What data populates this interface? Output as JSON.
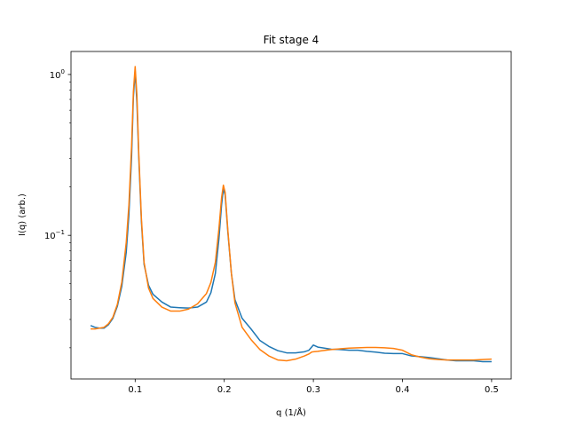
{
  "chart_data": {
    "type": "line",
    "title": "Fit stage 4",
    "xlabel": "q (1/Å)",
    "ylabel": "I(q) (arb.)",
    "xlim": [
      0.028,
      0.522
    ],
    "ylim": [
      0.0128,
      1.39
    ],
    "yscale": "log",
    "grid": false,
    "x_ticks": [
      {
        "value": 0.1,
        "label": "0.1"
      },
      {
        "value": 0.2,
        "label": "0.2"
      },
      {
        "value": 0.3,
        "label": "0.3"
      },
      {
        "value": 0.4,
        "label": "0.4"
      },
      {
        "value": 0.5,
        "label": "0.5"
      }
    ],
    "y_ticks": [
      {
        "value": 1,
        "base": "10",
        "exp": "0"
      },
      {
        "value": 0.1,
        "base": "10",
        "exp": "−1"
      }
    ],
    "series": [
      {
        "color": "#1f77b4",
        "x": [
          0.05,
          0.055,
          0.06,
          0.065,
          0.07,
          0.075,
          0.08,
          0.085,
          0.09,
          0.093,
          0.096,
          0.098,
          0.1,
          0.102,
          0.104,
          0.107,
          0.11,
          0.115,
          0.12,
          0.13,
          0.14,
          0.15,
          0.16,
          0.17,
          0.18,
          0.185,
          0.19,
          0.194,
          0.197,
          0.199,
          0.201,
          0.204,
          0.208,
          0.212,
          0.22,
          0.23,
          0.24,
          0.25,
          0.26,
          0.27,
          0.28,
          0.29,
          0.295,
          0.298,
          0.3,
          0.305,
          0.31,
          0.32,
          0.33,
          0.34,
          0.35,
          0.36,
          0.37,
          0.38,
          0.39,
          0.4,
          0.41,
          0.42,
          0.43,
          0.44,
          0.45,
          0.46,
          0.47,
          0.48,
          0.49,
          0.5
        ],
        "y": [
          0.0275,
          0.0268,
          0.0265,
          0.0265,
          0.0278,
          0.0305,
          0.0362,
          0.0482,
          0.0785,
          0.135,
          0.31,
          0.72,
          1.05,
          0.66,
          0.31,
          0.122,
          0.066,
          0.049,
          0.043,
          0.0385,
          0.0358,
          0.0355,
          0.0353,
          0.0358,
          0.0385,
          0.044,
          0.058,
          0.095,
          0.155,
          0.195,
          0.178,
          0.105,
          0.058,
          0.0398,
          0.0305,
          0.0262,
          0.0222,
          0.0204,
          0.0192,
          0.0186,
          0.0186,
          0.0189,
          0.0193,
          0.0202,
          0.0208,
          0.0202,
          0.02,
          0.0196,
          0.0195,
          0.0193,
          0.0193,
          0.019,
          0.0188,
          0.0185,
          0.0184,
          0.0184,
          0.0178,
          0.0176,
          0.0174,
          0.0171,
          0.0168,
          0.0166,
          0.0166,
          0.0166,
          0.0164,
          0.0164
        ]
      },
      {
        "color": "#ff7f0e",
        "x": [
          0.05,
          0.055,
          0.06,
          0.065,
          0.07,
          0.075,
          0.08,
          0.085,
          0.09,
          0.093,
          0.096,
          0.098,
          0.1,
          0.102,
          0.104,
          0.107,
          0.11,
          0.115,
          0.12,
          0.13,
          0.14,
          0.15,
          0.16,
          0.17,
          0.18,
          0.185,
          0.19,
          0.194,
          0.197,
          0.199,
          0.201,
          0.204,
          0.208,
          0.212,
          0.22,
          0.23,
          0.24,
          0.25,
          0.26,
          0.27,
          0.28,
          0.29,
          0.295,
          0.298,
          0.3,
          0.305,
          0.31,
          0.32,
          0.33,
          0.34,
          0.35,
          0.36,
          0.37,
          0.38,
          0.39,
          0.4,
          0.41,
          0.42,
          0.43,
          0.44,
          0.45,
          0.46,
          0.47,
          0.48,
          0.49,
          0.5
        ],
        "y": [
          0.0262,
          0.0262,
          0.0265,
          0.0268,
          0.0282,
          0.031,
          0.0372,
          0.0512,
          0.0905,
          0.155,
          0.36,
          0.78,
          1.12,
          0.74,
          0.33,
          0.128,
          0.068,
          0.047,
          0.0405,
          0.0358,
          0.0338,
          0.0338,
          0.0348,
          0.0375,
          0.0435,
          0.051,
          0.068,
          0.11,
          0.172,
          0.205,
          0.185,
          0.108,
          0.058,
          0.038,
          0.0268,
          0.0225,
          0.0195,
          0.0178,
          0.0168,
          0.0166,
          0.017,
          0.0178,
          0.0183,
          0.0188,
          0.0189,
          0.019,
          0.0192,
          0.0195,
          0.0197,
          0.0199,
          0.02,
          0.0201,
          0.0201,
          0.02,
          0.0198,
          0.0193,
          0.0181,
          0.0175,
          0.0171,
          0.0169,
          0.0168,
          0.0168,
          0.0168,
          0.0168,
          0.0169,
          0.017
        ]
      }
    ]
  }
}
